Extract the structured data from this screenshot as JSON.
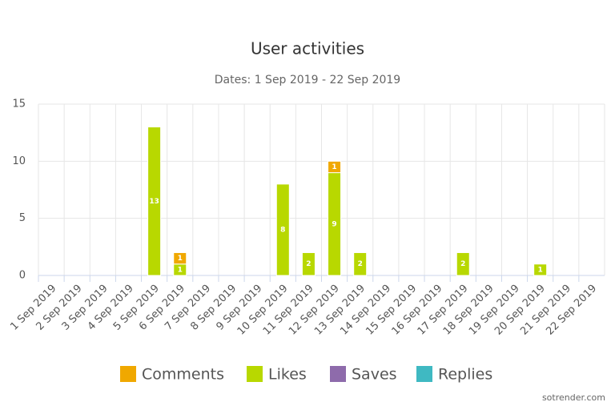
{
  "chart_data": {
    "type": "stacked-bar",
    "title": "User activities",
    "subtitle": "Dates: 1 Sep 2019 - 22 Sep 2019",
    "categories": [
      "1 Sep 2019",
      "2 Sep 2019",
      "3 Sep 2019",
      "4 Sep 2019",
      "5 Sep 2019",
      "6 Sep 2019",
      "7 Sep 2019",
      "8 Sep 2019",
      "9 Sep 2019",
      "10 Sep 2019",
      "11 Sep 2019",
      "12 Sep 2019",
      "13 Sep 2019",
      "14 Sep 2019",
      "15 Sep 2019",
      "16 Sep 2019",
      "17 Sep 2019",
      "18 Sep 2019",
      "19 Sep 2019",
      "20 Sep 2019",
      "21 Sep 2019",
      "22 Sep 2019"
    ],
    "series": [
      {
        "name": "Comments",
        "color": "#f0a800",
        "values": [
          0,
          0,
          0,
          0,
          0,
          1,
          0,
          0,
          0,
          0,
          0,
          1,
          0,
          0,
          0,
          0,
          0,
          0,
          0,
          0,
          0,
          0
        ]
      },
      {
        "name": "Likes",
        "color": "#b8d800",
        "values": [
          0,
          0,
          0,
          0,
          13,
          1,
          0,
          0,
          0,
          8,
          2,
          9,
          2,
          0,
          0,
          0,
          2,
          0,
          0,
          1,
          0,
          0
        ]
      },
      {
        "name": "Saves",
        "color": "#8e6bab",
        "values": [
          0,
          0,
          0,
          0,
          0,
          0,
          0,
          0,
          0,
          0,
          0,
          0,
          0,
          0,
          0,
          0,
          0,
          0,
          0,
          0,
          0,
          0
        ]
      },
      {
        "name": "Replies",
        "color": "#3fb9c2",
        "values": [
          0,
          0,
          0,
          0,
          0,
          0,
          0,
          0,
          0,
          0,
          0,
          0,
          0,
          0,
          0,
          0,
          0,
          0,
          0,
          0,
          0,
          0
        ]
      }
    ],
    "ylim": [
      0,
      15
    ],
    "yticks": [
      0,
      5,
      10,
      15
    ],
    "grid": true
  },
  "footer": "sotrender.com"
}
